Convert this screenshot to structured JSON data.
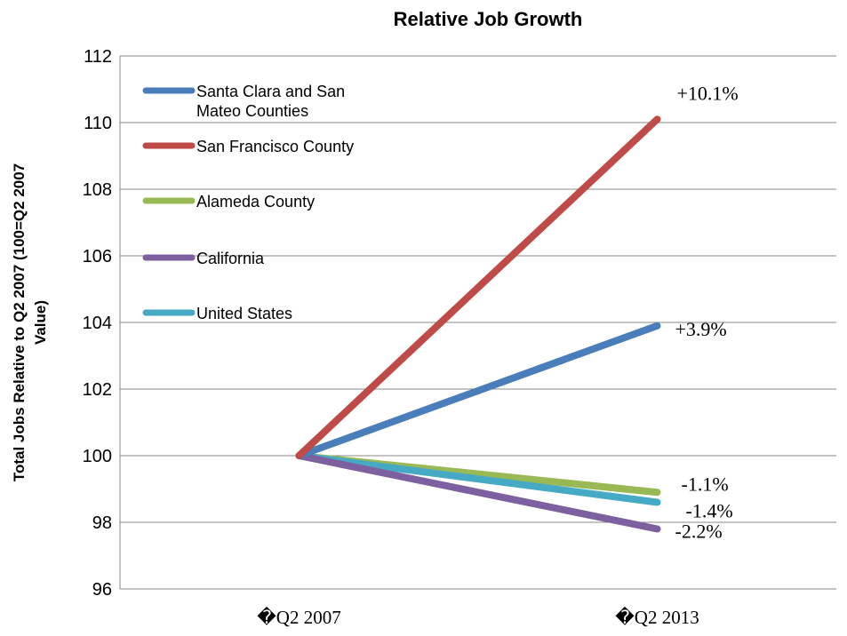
{
  "chart_data": {
    "type": "line",
    "title": "Relative Job Growth",
    "xlabel": "",
    "ylabel": "Total Jobs Relative to Q2 2007 (100=Q2 2007 Value)",
    "ylabel_lines": [
      "Total Jobs Relative to Q2 2007 (100=Q2 2007",
      "Value)"
    ],
    "categories": [
      "�Q2 2007",
      "�Q2 2013"
    ],
    "ylim": [
      96,
      112
    ],
    "yticks": [
      96,
      98,
      100,
      102,
      104,
      106,
      108,
      110,
      112
    ],
    "grid": true,
    "legend_position": "top-left",
    "series": [
      {
        "name": "Santa Clara and San Mateo Counties",
        "name_lines": [
          "Santa Clara and San",
          "Mateo Counties"
        ],
        "color": "#4a7ebb",
        "values": [
          100,
          103.9
        ],
        "end_label": "+3.9%"
      },
      {
        "name": "San Francisco County",
        "name_lines": [
          "San Francisco County"
        ],
        "color": "#be4b48",
        "values": [
          100,
          110.1
        ],
        "end_label": "+10.1%"
      },
      {
        "name": "Alameda County",
        "name_lines": [
          "Alameda County"
        ],
        "color": "#98b954",
        "values": [
          100,
          98.9
        ],
        "end_label": "-1.1%"
      },
      {
        "name": "California",
        "name_lines": [
          "California"
        ],
        "color": "#7d60a0",
        "values": [
          100,
          97.8
        ],
        "end_label": "-2.2%"
      },
      {
        "name": "United States",
        "name_lines": [
          "United States"
        ],
        "color": "#46aac5",
        "values": [
          100,
          98.6
        ],
        "end_label": "-1.4%"
      }
    ]
  }
}
